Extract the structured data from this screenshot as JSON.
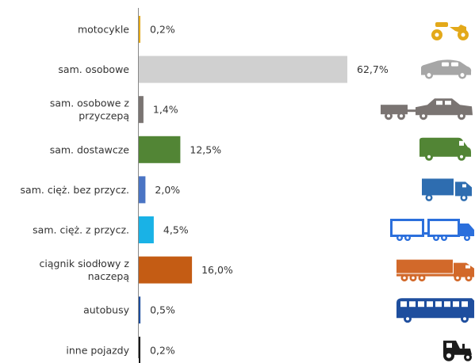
{
  "chart_data": {
    "type": "bar",
    "orientation": "horizontal",
    "categories": [
      "motocykle",
      "sam. osobowe",
      "sam. osobowe z przyczepą",
      "sam. dostawcze",
      "sam. cięż. bez przycz.",
      "sam. cięż. z przycz.",
      "ciągnik siodłowy z naczepą",
      "autobusy",
      "inne pojazdy"
    ],
    "category_lines": [
      [
        "motocykle"
      ],
      [
        "sam. osobowe"
      ],
      [
        "sam. osobowe z",
        "przyczepą"
      ],
      [
        "sam. dostawcze"
      ],
      [
        "sam. cięż. bez przycz."
      ],
      [
        "sam. cięż. z przycz."
      ],
      [
        "ciągnik siodłowy z",
        "naczepą"
      ],
      [
        "autobusy"
      ],
      [
        "inne pojazdy"
      ]
    ],
    "values": [
      0.2,
      62.7,
      1.4,
      12.5,
      2.0,
      4.5,
      16.0,
      0.5,
      0.2
    ],
    "value_labels": [
      "0,2%",
      "62,7%",
      "1,4%",
      "12,5%",
      "2,0%",
      "4,5%",
      "16,0%",
      "0,5%",
      "0,2%"
    ],
    "colors": [
      "#e3a91a",
      "#d0d0d0",
      "#7a7472",
      "#528535",
      "#4a74c4",
      "#19b2e6",
      "#c45c14",
      "#1e4e9e",
      "#1b1b1b"
    ],
    "icons": [
      "motorcycle-icon",
      "car-icon",
      "car-with-trailer-icon",
      "van-icon",
      "truck-icon",
      "truck-with-trailer-icon",
      "semi-trailer-truck-icon",
      "bus-icon",
      "tractor-icon"
    ],
    "icon_colors": [
      "#e3a91a",
      "#a6a6a6",
      "#7a7472",
      "#528535",
      "#2e6db0",
      "#2b6fdc",
      "#d2692a",
      "#1e4e9e",
      "#1b1b1b"
    ],
    "xlim": [
      0,
      62.7
    ],
    "grid": false,
    "legend": "none"
  }
}
